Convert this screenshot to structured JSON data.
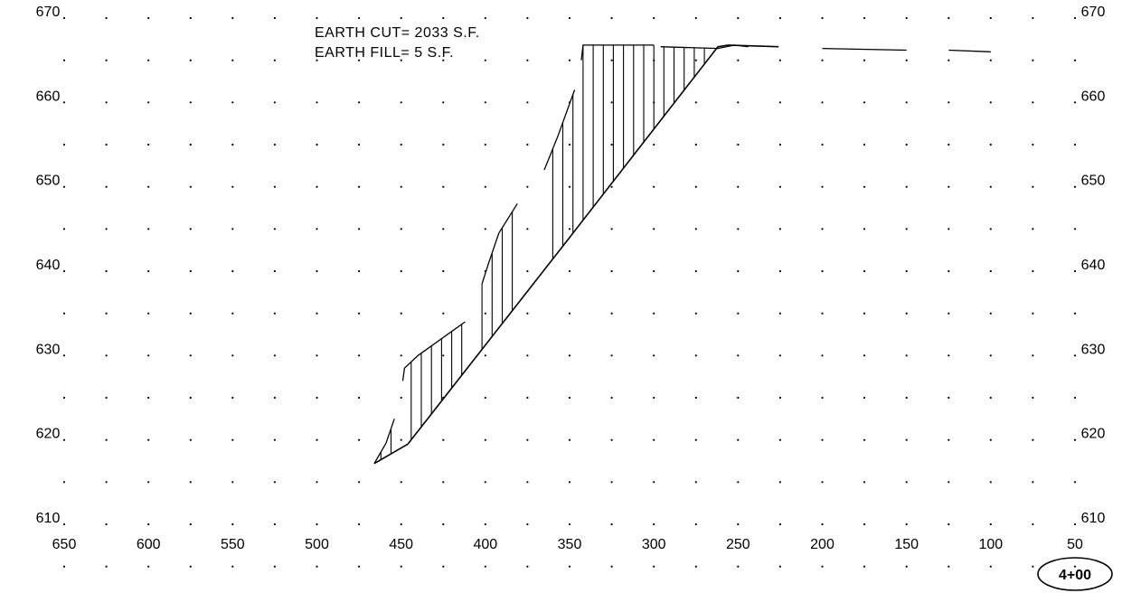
{
  "notes": {
    "earth_cut": "EARTH CUT= 2033 S.F.",
    "earth_fill": "EARTH FILL= 5 S.F."
  },
  "station_label": "4+00",
  "chart_data": {
    "type": "line",
    "title": "",
    "xlabel": "",
    "ylabel": "",
    "x_reversed": true,
    "xlim": [
      650,
      50
    ],
    "ylim": [
      610,
      670
    ],
    "x_ticks": [
      "650",
      "600",
      "550",
      "500",
      "450",
      "400",
      "350",
      "300",
      "250",
      "200",
      "150",
      "100",
      "50"
    ],
    "y_ticks_left": [
      "670",
      "660",
      "650",
      "640",
      "630",
      "620",
      "610"
    ],
    "y_ticks_right": [
      "670",
      "660",
      "650",
      "640",
      "630",
      "620",
      "610"
    ],
    "grid": "dots",
    "design_section": [
      {
        "x": 466,
        "y": 617.2
      },
      {
        "x": 446,
        "y": 619.5
      },
      {
        "x": 350,
        "y": 644.0
      },
      {
        "x": 262,
        "y": 666.6
      },
      {
        "x": 256,
        "y": 666.8
      },
      {
        "x": 226,
        "y": 666.6
      }
    ],
    "existing_ground": [
      [
        {
          "x": 466,
          "y": 617.2
        },
        {
          "x": 459,
          "y": 619.6
        },
        {
          "x": 454,
          "y": 622.5
        }
      ],
      [
        {
          "x": 449,
          "y": 627.0
        },
        {
          "x": 448,
          "y": 628.5
        },
        {
          "x": 440,
          "y": 630.0
        },
        {
          "x": 412,
          "y": 634.0
        }
      ],
      [
        {
          "x": 402,
          "y": 638.5
        },
        {
          "x": 398,
          "y": 641.0
        },
        {
          "x": 392,
          "y": 644.5
        },
        {
          "x": 381,
          "y": 648.0
        }
      ],
      [
        {
          "x": 365,
          "y": 652.0
        },
        {
          "x": 357,
          "y": 656.0
        },
        {
          "x": 347,
          "y": 661.5
        }
      ],
      [
        {
          "x": 343,
          "y": 665.0
        },
        {
          "x": 342,
          "y": 666.8
        },
        {
          "x": 300,
          "y": 666.8
        }
      ],
      [
        {
          "x": 296,
          "y": 666.6
        },
        {
          "x": 262,
          "y": 666.4
        },
        {
          "x": 252,
          "y": 666.8
        },
        {
          "x": 244,
          "y": 666.6
        }
      ],
      [
        {
          "x": 200,
          "y": 666.4
        },
        {
          "x": 150,
          "y": 666.2
        }
      ],
      [
        {
          "x": 125,
          "y": 666.2
        },
        {
          "x": 100,
          "y": 666.0
        }
      ]
    ]
  }
}
